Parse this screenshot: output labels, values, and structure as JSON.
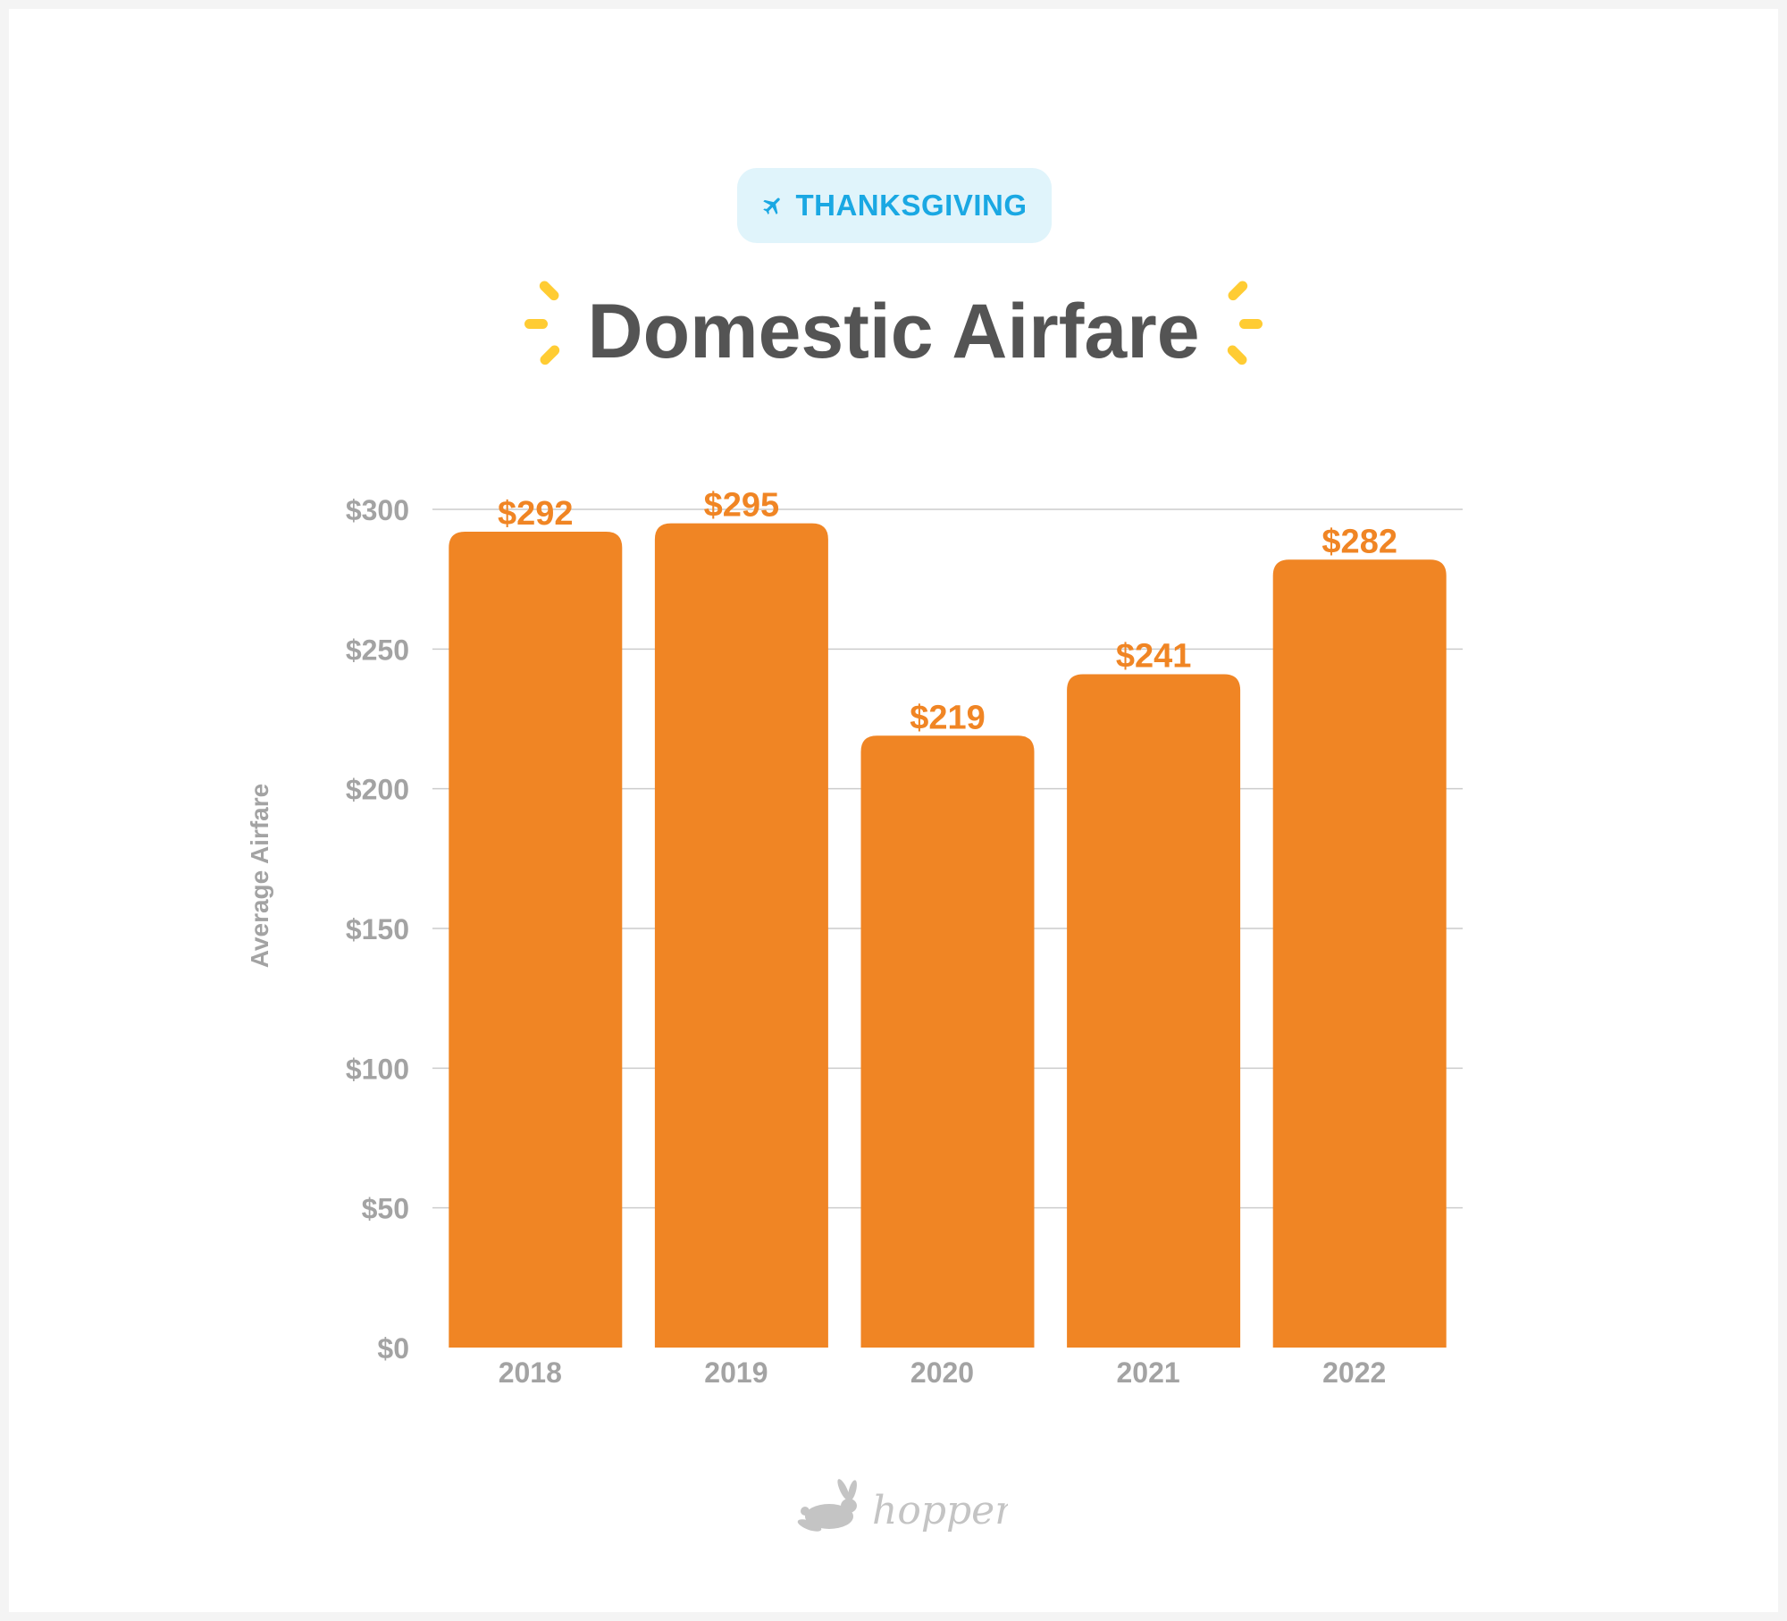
{
  "badge": {
    "label": "THANKSGIVING",
    "icon": "airplane-icon",
    "color": "#1aa8e3",
    "background": "#e0f4fb"
  },
  "header": {
    "title": "Domestic Airfare",
    "sparkle_color": "#ffcc33"
  },
  "logo": {
    "text": "hopper",
    "icon": "bunny-icon"
  },
  "colors": {
    "bar": "#f08524",
    "label": "#f08524",
    "axis_text": "#a3a3a3",
    "grid": "#cccccc"
  },
  "chart_data": {
    "type": "bar",
    "categories": [
      "2018",
      "2019",
      "2020",
      "2021",
      "2022"
    ],
    "values": [
      292,
      295,
      219,
      241,
      282
    ],
    "value_labels": [
      "$292",
      "$295",
      "$219",
      "$241",
      "$282"
    ],
    "yticks": [
      0,
      50,
      100,
      150,
      200,
      250,
      300
    ],
    "ytick_labels": [
      "$0",
      "$50",
      "$100",
      "$150",
      "$200",
      "$250",
      "$300"
    ],
    "ylim": [
      0,
      315
    ],
    "ylabel": "Average Airfare",
    "xlabel": "",
    "grid": true
  }
}
